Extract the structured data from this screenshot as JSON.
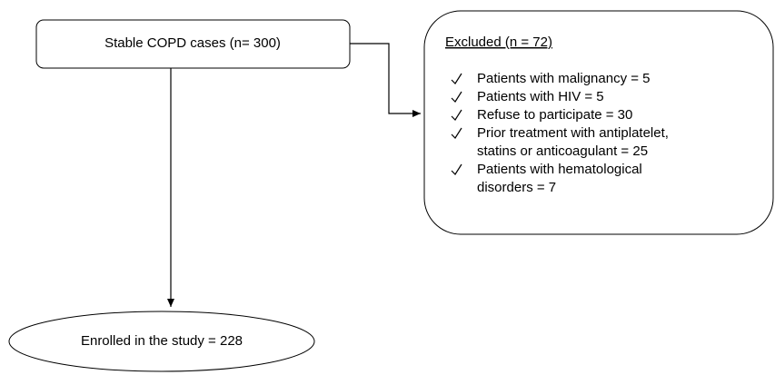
{
  "nodes": [
    {
      "label": "Stable COPD cases (n= 300)"
    },
    {
      "title": "Excluded (n = 72)",
      "items": [
        [
          "Patients with malignancy = 5"
        ],
        [
          "Patients with HIV = 5"
        ],
        [
          "Refuse to participate = 30"
        ],
        [
          "Prior treatment with antiplatelet,",
          "statins or anticoagulant = 25"
        ],
        [
          "Patients with hematological",
          "disorders = 7"
        ]
      ]
    },
    {
      "label": "Enrolled in the study = 228"
    }
  ]
}
